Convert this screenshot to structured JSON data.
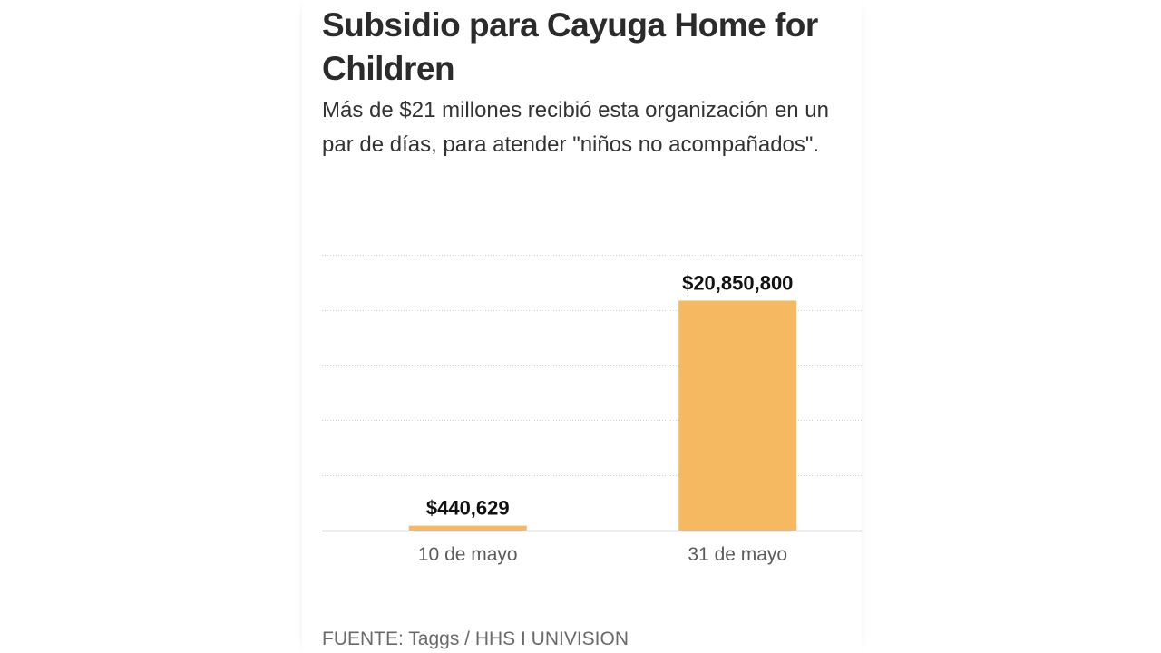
{
  "title": "Subsidio para Cayuga Home for Children",
  "subtitle": "Más de $21 millones recibió esta organización en un par de días, para atender \"niños no acompañados\".",
  "source": "FUENTE: Taggs / HHS I UNIVISION",
  "chart_data": {
    "type": "bar",
    "categories": [
      "10 de mayo",
      "31 de mayo"
    ],
    "values": [
      440629,
      20850800
    ],
    "data_labels": [
      "$440,629",
      "$20,850,800"
    ],
    "ylim": [
      0,
      25000000
    ],
    "grid": true,
    "bar_color": "#f5b962"
  }
}
